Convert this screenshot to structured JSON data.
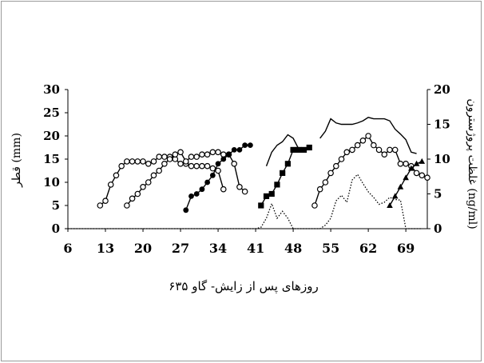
{
  "chart_data": {
    "type": "line",
    "xlabel": "روزهای پس از زایش- گاو ۶۳۵",
    "ylabel_left": "قطر (mm)",
    "ylabel_right": "غلظت پروژسترون (ng/ml)",
    "x_ticks": [
      "6",
      "13",
      "20",
      "27",
      "34",
      "41",
      "48",
      "55",
      "62",
      "69"
    ],
    "y_left_ticks": [
      "0",
      "5",
      "10",
      "15",
      "20",
      "25",
      "30"
    ],
    "y_right_ticks": [
      "0",
      "5",
      "10",
      "15",
      "20"
    ],
    "xlim": [
      6,
      73
    ],
    "ylim_left": [
      0,
      30
    ],
    "ylim_right": [
      0,
      20
    ],
    "grid": false,
    "legend": "none",
    "series": [
      {
        "marker": "open-circle",
        "axis": "left",
        "x": [
          12,
          13,
          14,
          15,
          16,
          17,
          18,
          19,
          20,
          21,
          22,
          23,
          24,
          25,
          26,
          27,
          28,
          29,
          30,
          31,
          32,
          33,
          34,
          35
        ],
        "y": [
          5,
          6,
          9.5,
          11.5,
          13.5,
          14.5,
          14.5,
          14.5,
          14.5,
          14,
          14.5,
          15.5,
          15.5,
          15.5,
          15,
          14,
          14,
          13.5,
          13.5,
          13.5,
          13.5,
          13,
          12.5,
          8.5
        ]
      },
      {
        "marker": "open-circle",
        "axis": "left",
        "x": [
          17,
          18,
          19,
          20,
          21,
          22,
          23,
          24,
          25,
          26,
          27,
          28,
          29,
          30,
          31,
          32,
          33,
          34,
          35,
          36,
          37,
          38,
          39
        ],
        "y": [
          5,
          6.5,
          7.5,
          9,
          10,
          11.5,
          12.5,
          14,
          15,
          16,
          16.5,
          14.5,
          15.5,
          15.5,
          16,
          16,
          16.5,
          16.5,
          16,
          16,
          14,
          9,
          8
        ]
      },
      {
        "marker": "filled-circle",
        "axis": "left",
        "x": [
          28,
          29,
          30,
          31,
          32,
          33,
          34,
          35,
          36,
          37,
          38,
          39,
          40
        ],
        "y": [
          4,
          7,
          7.5,
          8.5,
          10,
          11.5,
          14,
          15,
          16,
          17,
          17,
          18,
          18
        ]
      },
      {
        "marker": "filled-square",
        "axis": "left",
        "x": [
          42,
          43,
          44,
          45,
          46,
          47,
          48,
          49,
          50,
          51
        ],
        "y": [
          5,
          7,
          7.5,
          9.5,
          12,
          14,
          17,
          17,
          17,
          17.5
        ]
      },
      {
        "marker": "open-circle",
        "axis": "left",
        "x": [
          52,
          53,
          54,
          55,
          56,
          57,
          58,
          59,
          60,
          61,
          62,
          63,
          64,
          65,
          66,
          67,
          68,
          69,
          70,
          71,
          72,
          73
        ],
        "y": [
          5,
          8.5,
          10,
          12,
          13.5,
          15,
          16.5,
          17,
          18,
          19,
          20,
          18,
          17,
          16,
          17,
          17,
          14,
          14,
          13.5,
          12,
          11.5,
          11
        ]
      },
      {
        "marker": "filled-triangle",
        "axis": "left",
        "x": [
          66,
          67,
          68,
          69,
          70,
          71,
          72
        ],
        "y": [
          5,
          7,
          9,
          11,
          13,
          14,
          14.5
        ]
      },
      {
        "marker": "none",
        "line": "solid",
        "axis": "right",
        "x": [
          43,
          44,
          45,
          46,
          47,
          48,
          49
        ],
        "y": [
          9,
          11,
          12,
          12.5,
          13.5,
          13,
          11.5
        ]
      },
      {
        "marker": "none",
        "line": "solid",
        "axis": "right",
        "x": [
          53,
          54,
          55,
          56,
          57,
          58,
          59,
          60,
          61,
          62,
          63,
          64,
          65,
          66,
          67,
          68,
          69,
          70,
          71
        ],
        "y": [
          13,
          14,
          15.8,
          15.2,
          15,
          15,
          15,
          15.2,
          15.5,
          16,
          15.8,
          15.8,
          15.8,
          15.5,
          14.3,
          13.6,
          12.8,
          11,
          10.8
        ]
      },
      {
        "marker": "none",
        "line": "dotted",
        "axis": "right",
        "x": [
          6,
          41,
          42,
          43,
          44,
          45,
          46,
          47,
          48,
          49,
          50,
          51,
          52,
          53,
          54,
          55,
          56,
          57,
          58,
          59,
          60,
          61,
          62,
          63,
          64,
          65,
          66,
          67,
          68,
          69,
          70,
          71,
          72
        ],
        "y": [
          0,
          0,
          0.2,
          1.5,
          3.6,
          1.5,
          2.5,
          1.5,
          0,
          0,
          0,
          0,
          0,
          0,
          0.5,
          1.5,
          4,
          4.8,
          3.8,
          7,
          7.8,
          6.5,
          5.3,
          4.5,
          3.5,
          3.8,
          4.5,
          4.2,
          4.1,
          0,
          0,
          0,
          0
        ]
      }
    ]
  }
}
